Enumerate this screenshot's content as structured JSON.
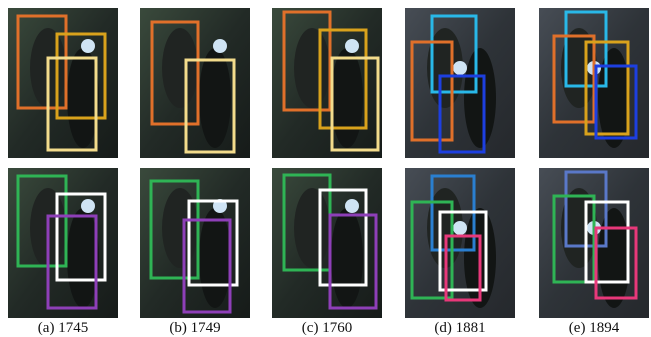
{
  "captions": [
    "(a) 1745",
    "(b) 1749",
    "(c) 1760",
    "(d) 1881",
    "(e) 1894"
  ]
}
